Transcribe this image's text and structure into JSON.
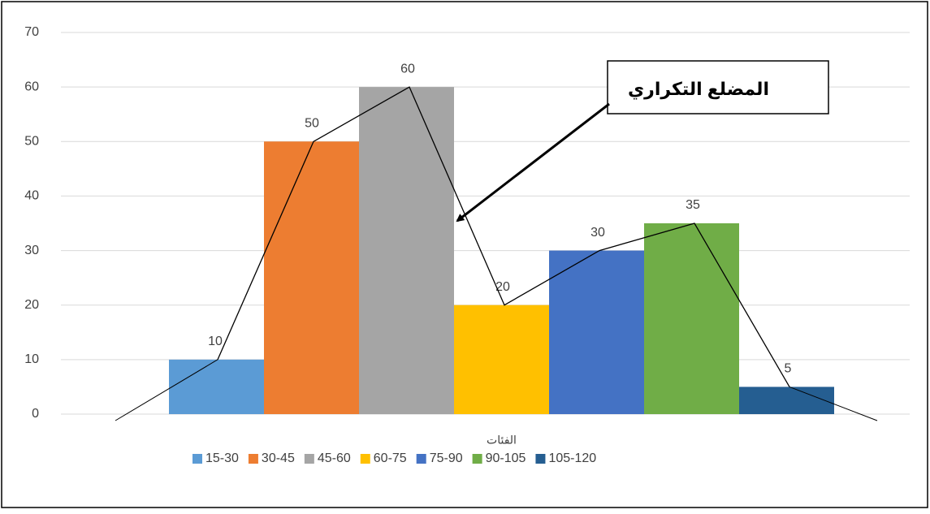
{
  "chart_data": {
    "type": "bar",
    "categories": [
      "الفئات"
    ],
    "series": [
      {
        "name": "15-30",
        "color": "#5b9bd5",
        "values": [
          10
        ]
      },
      {
        "name": "30-45",
        "color": "#ed7d31",
        "values": [
          50
        ]
      },
      {
        "name": "45-60",
        "color": "#a5a5a5",
        "values": [
          60
        ]
      },
      {
        "name": "60-75",
        "color": "#ffc000",
        "values": [
          20
        ]
      },
      {
        "name": "75-90",
        "color": "#4472c4",
        "values": [
          30
        ]
      },
      {
        "name": "90-105",
        "color": "#70ad47",
        "values": [
          35
        ]
      },
      {
        "name": "105-120",
        "color": "#255e91",
        "values": [
          5
        ]
      }
    ],
    "ylim": [
      0,
      70
    ],
    "yticks": [
      0,
      10,
      20,
      30,
      40,
      50,
      60,
      70
    ],
    "grid": true,
    "legend": "bottom",
    "annotation": "المضلع التكراري"
  }
}
